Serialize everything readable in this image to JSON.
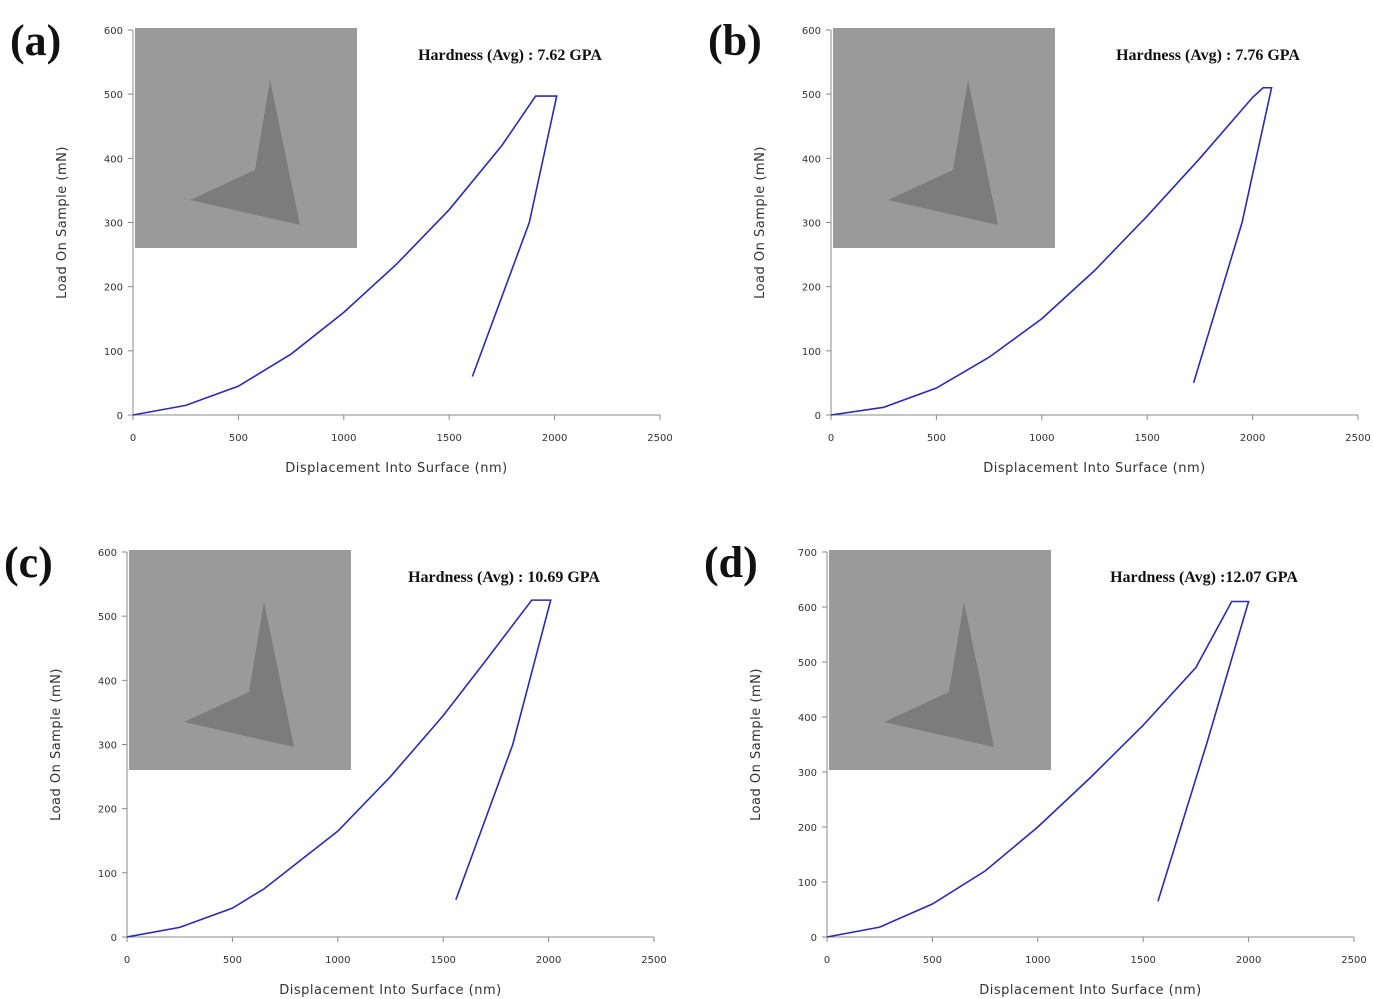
{
  "chart_data": [
    {
      "type": "line",
      "panel_label": "(a)",
      "annotation": "Hardness (Avg) : 7.62 GPA",
      "xlabel": "Displacement Into Surface (nm)",
      "ylabel": "Load On Sample (mN)",
      "xlim": [
        0,
        2500
      ],
      "ylim": [
        0,
        600
      ],
      "xticks": [
        0,
        500,
        1000,
        1500,
        2000,
        2500
      ],
      "yticks": [
        0,
        100,
        200,
        300,
        400,
        500,
        600
      ],
      "series": [
        {
          "color": "#2a2ab8",
          "x": [
            0,
            250,
            500,
            750,
            1000,
            1250,
            1500,
            1750,
            1910,
            2010,
            1880,
            1610
          ],
          "values": [
            0,
            15,
            45,
            95,
            160,
            235,
            320,
            420,
            497,
            497,
            300,
            60
          ]
        }
      ]
    },
    {
      "type": "line",
      "panel_label": "(b)",
      "annotation": "Hardness (Avg) : 7.76 GPA",
      "xlabel": "Displacement Into Surface (nm)",
      "ylabel": "Load On Sample (mN)",
      "xlim": [
        0,
        2500
      ],
      "ylim": [
        0,
        600
      ],
      "xticks": [
        0,
        500,
        1000,
        1500,
        2000,
        2500
      ],
      "yticks": [
        0,
        100,
        200,
        300,
        400,
        500,
        600
      ],
      "series": [
        {
          "color": "#2a2ab8",
          "x": [
            0,
            250,
            500,
            750,
            1000,
            1250,
            1500,
            1750,
            2000,
            2050,
            2090,
            1950,
            1720
          ],
          "values": [
            0,
            12,
            42,
            90,
            150,
            225,
            310,
            400,
            495,
            510,
            510,
            300,
            50
          ]
        }
      ]
    },
    {
      "type": "line",
      "panel_label": "(c)",
      "annotation": "Hardness (Avg) : 10.69 GPA",
      "xlabel": "Displacement Into Surface (nm)",
      "ylabel": "Load On Sample (mN)",
      "xlim": [
        0,
        2500
      ],
      "ylim": [
        0,
        600
      ],
      "xticks": [
        0,
        500,
        1000,
        1500,
        2000,
        2500
      ],
      "yticks": [
        0,
        100,
        200,
        300,
        400,
        500,
        600
      ],
      "series": [
        {
          "color": "#2a2ab8",
          "x": [
            0,
            250,
            500,
            650,
            1000,
            1250,
            1500,
            1700,
            1920,
            2010,
            1830,
            1560
          ],
          "values": [
            0,
            15,
            45,
            75,
            165,
            250,
            345,
            430,
            525,
            525,
            300,
            58
          ]
        }
      ]
    },
    {
      "type": "line",
      "panel_label": "(d)",
      "annotation": "Hardness (Avg) :12.07 GPA",
      "xlabel": "Displacement Into Surface (nm)",
      "ylabel": "Load On Sample (mN)",
      "xlim": [
        0,
        2500
      ],
      "ylim": [
        0,
        700
      ],
      "xticks": [
        0,
        500,
        1000,
        1500,
        2000,
        2500
      ],
      "yticks": [
        0,
        100,
        200,
        300,
        400,
        500,
        600,
        700
      ],
      "series": [
        {
          "color": "#2a2ab8",
          "x": [
            0,
            250,
            500,
            750,
            1000,
            1250,
            1500,
            1750,
            1920,
            2000,
            1800,
            1570
          ],
          "values": [
            0,
            18,
            60,
            120,
            200,
            290,
            385,
            490,
            610,
            610,
            350,
            65
          ]
        }
      ]
    }
  ]
}
